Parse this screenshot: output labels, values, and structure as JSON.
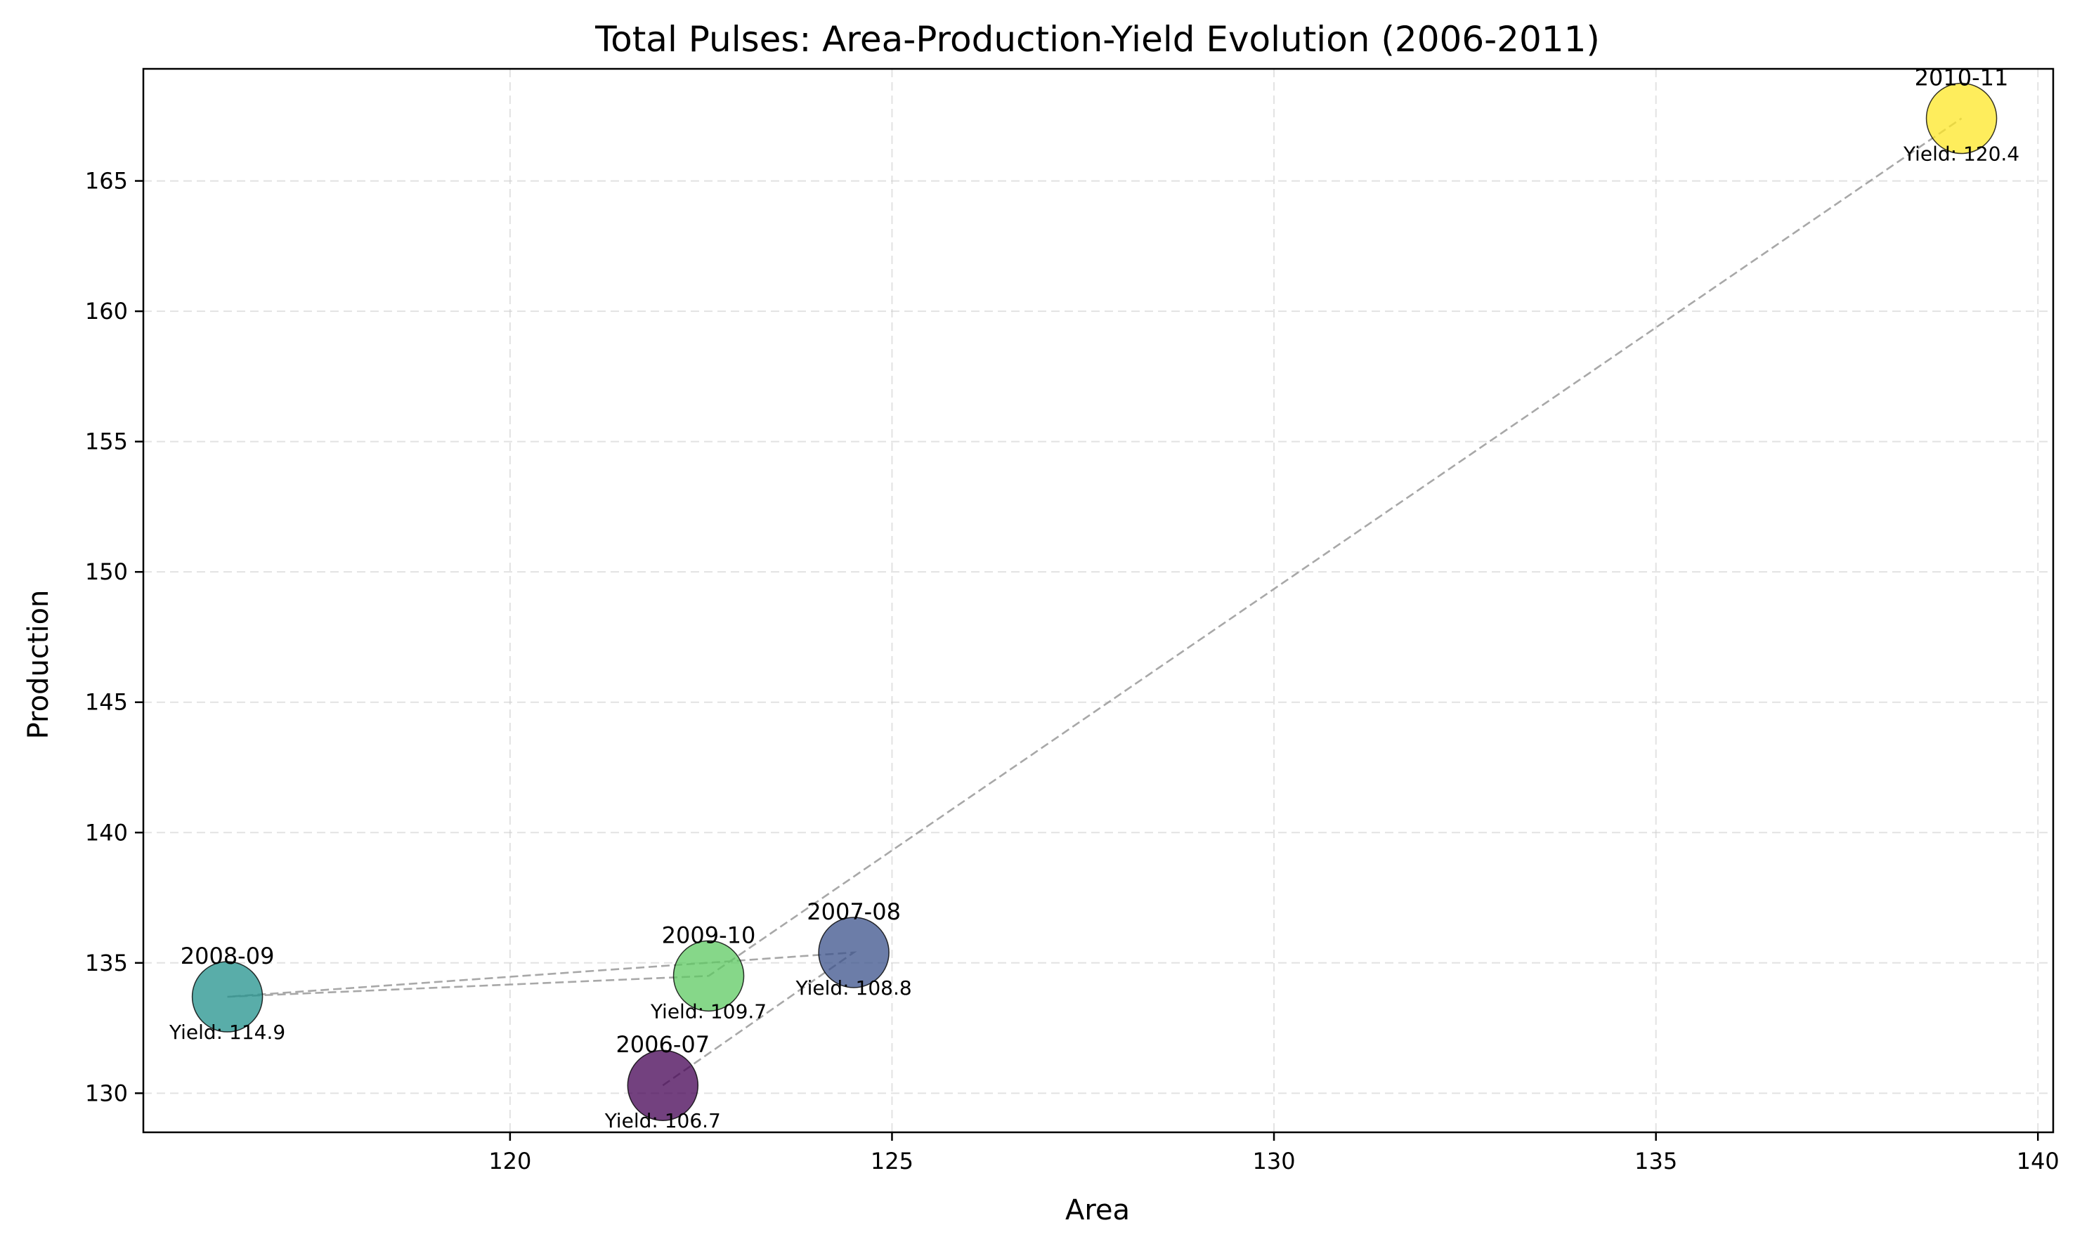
{
  "chart_data": {
    "type": "scatter",
    "title": "Total Pulses: Area-Production-Yield Evolution (2006-2011)",
    "xlabel": "Area",
    "ylabel": "Production",
    "xlim": [
      115.2,
      140.2
    ],
    "ylim": [
      128.5,
      169.3
    ],
    "xticks": [
      120,
      125,
      130,
      135,
      140
    ],
    "yticks": [
      130,
      135,
      140,
      145,
      150,
      155,
      160,
      165
    ],
    "grid": true,
    "points": [
      {
        "label": "2006-07",
        "x": 122.0,
        "y": 130.3,
        "yield_text": "Yield: 106.7",
        "color": "#440154"
      },
      {
        "label": "2007-08",
        "x": 124.5,
        "y": 135.4,
        "yield_text": "Yield: 108.8",
        "color": "#3b528b"
      },
      {
        "label": "2008-09",
        "x": 116.3,
        "y": 133.7,
        "yield_text": "Yield: 114.9",
        "color": "#21918c"
      },
      {
        "label": "2009-10",
        "x": 122.6,
        "y": 134.5,
        "yield_text": "Yield: 109.7",
        "color": "#5ec962"
      },
      {
        "label": "2010-11",
        "x": 139.0,
        "y": 167.4,
        "yield_text": "Yield: 120.4",
        "color": "#fde725"
      }
    ]
  }
}
